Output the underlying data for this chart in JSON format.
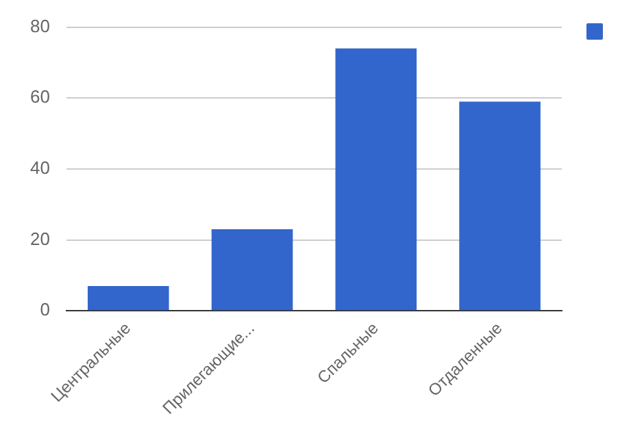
{
  "chart_data": {
    "type": "bar",
    "categories": [
      "Центральные",
      "Прилегающие...",
      "Спальные",
      "Отдаленные"
    ],
    "series": [
      {
        "color": "#3366cc",
        "values": [
          7,
          23,
          74,
          59
        ]
      }
    ],
    "ylim": [
      0,
      80
    ],
    "yticks": [
      0,
      20,
      40,
      60,
      80
    ],
    "grid": "y"
  }
}
